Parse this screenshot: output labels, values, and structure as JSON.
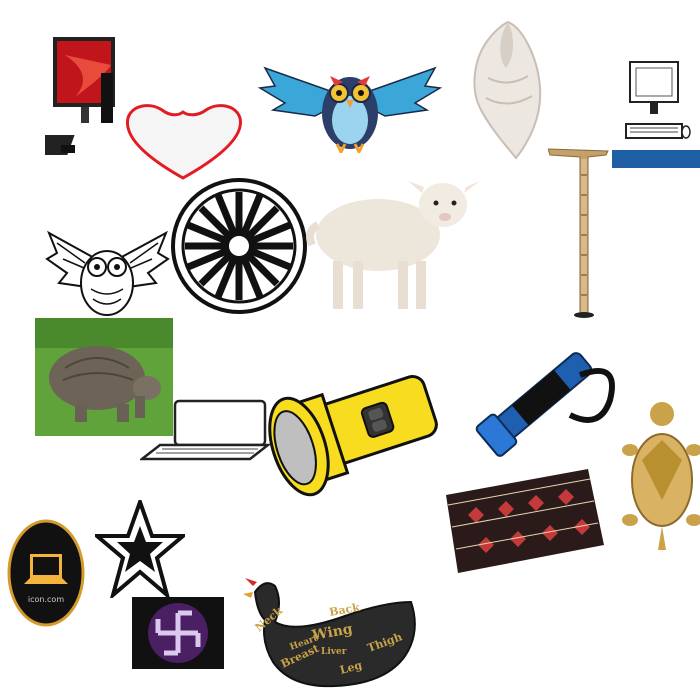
{
  "title": "",
  "icons": [
    "desktop-computer-icon",
    "heart-icon",
    "owl-icon",
    "conch-shell-icon",
    "computer-line-art-icon",
    "owl-mandala-icon",
    "wheel-icon",
    "lamb-icon",
    "measuring-rod-icon",
    "tortoise-icon",
    "laptop-outline-icon",
    "flashlight-icon",
    "blue-flashlight-icon",
    "turtle-figurine-icon",
    "fabric-cap-icon",
    "laptop-badge-icon",
    "star-icon",
    "swastika-icon",
    "chicken-cuts-icon"
  ],
  "chicken": {
    "labels": [
      "Neck",
      "Back",
      "Wing",
      "Breast",
      "Liver",
      "Thigh",
      "Leg",
      "Heart"
    ]
  },
  "badge": {
    "text": "icon.com"
  }
}
